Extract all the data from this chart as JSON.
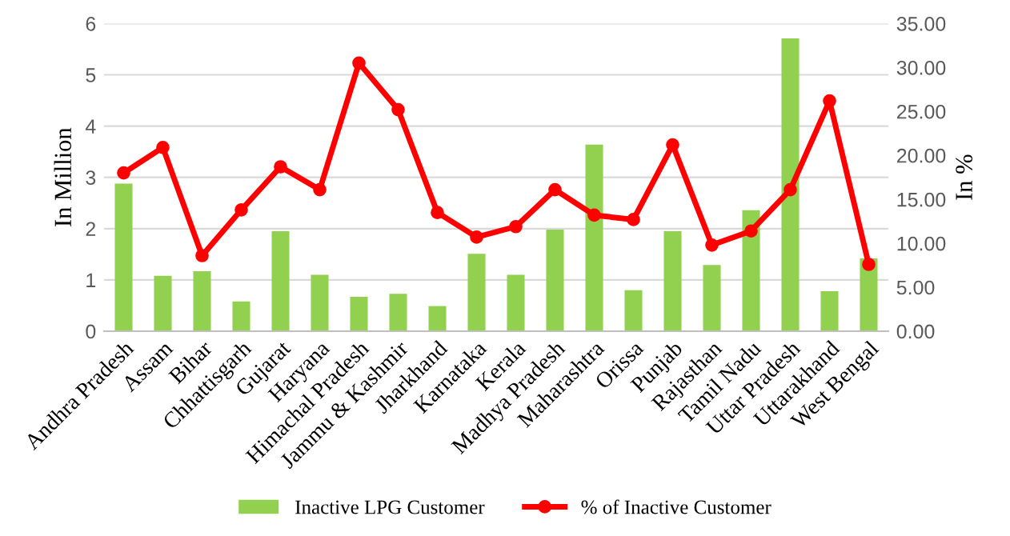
{
  "chart_data": {
    "type": "bar",
    "ylabel": "In Million",
    "y2label": "In %",
    "categories": [
      "Andhra Pradesh",
      "Assam",
      "Bihar",
      "Chhattisgarh",
      "Gujarat",
      "Haryana",
      "Himachal Pradesh",
      "Jammu & Kashmir",
      "Jharkhand",
      "Karnataka",
      "Kerala",
      "Madhya Pradesh",
      "Maharashtra",
      "Orissa",
      "Punjab",
      "Rajasthan",
      "Tamil Nadu",
      "Uttar Pradesh",
      "Uttarakhand",
      "West Bengal"
    ],
    "series": [
      {
        "name": "Inactive LPG Customer",
        "color": "#92d050",
        "values": [
          2.88,
          1.08,
          1.17,
          0.58,
          1.95,
          1.1,
          0.67,
          0.73,
          0.49,
          1.51,
          1.1,
          1.98,
          3.64,
          0.8,
          1.95,
          1.29,
          2.36,
          5.71,
          0.78,
          1.42
        ]
      },
      {
        "name": "% of Inactive Customer",
        "type": "line",
        "axis": "y2",
        "color": "#ff0000",
        "marker": "circle",
        "values": [
          18.0,
          20.9,
          8.6,
          13.8,
          18.7,
          16.1,
          30.5,
          25.2,
          13.5,
          10.7,
          11.9,
          16.1,
          13.2,
          12.7,
          21.2,
          9.8,
          11.4,
          16.1,
          26.2,
          7.6
        ]
      }
    ],
    "ylim": [
      0,
      6
    ],
    "yticks": [
      0,
      1,
      2,
      3,
      4,
      5,
      6
    ],
    "y2lim": [
      0,
      35
    ],
    "y2ticks": [
      {
        "value": 0,
        "label": "0.00"
      },
      {
        "value": 5,
        "label": "5.00"
      },
      {
        "value": 10,
        "label": "10.00"
      },
      {
        "value": 15,
        "label": "15.00"
      },
      {
        "value": 20,
        "label": "20.00"
      },
      {
        "value": 25,
        "label": "25.00"
      },
      {
        "value": 30,
        "label": "30.00"
      },
      {
        "value": 35,
        "label": "35.00"
      }
    ],
    "grid": "y",
    "legend": "bottom"
  }
}
